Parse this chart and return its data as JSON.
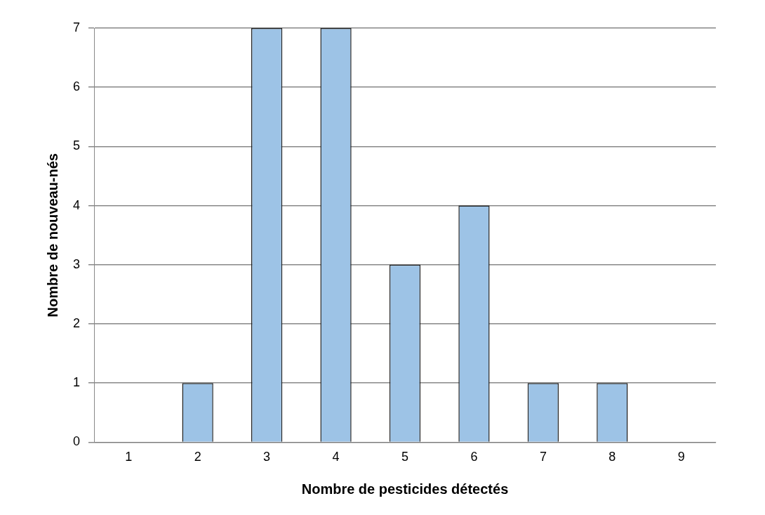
{
  "chart_data": {
    "type": "bar",
    "xlabel": "Nombre de pesticides détectés",
    "ylabel": "Nombre de nouveau-nés",
    "categories": [
      "1",
      "2",
      "3",
      "4",
      "5",
      "6",
      "7",
      "8",
      "9"
    ],
    "values": [
      0,
      1,
      7,
      7,
      3,
      4,
      1,
      1,
      0
    ],
    "color": "#9dc3e6",
    "ylim": [
      0,
      7
    ],
    "yticks": [
      0,
      1,
      2,
      3,
      4,
      5,
      6,
      7
    ],
    "grid": "y",
    "legend": false
  }
}
